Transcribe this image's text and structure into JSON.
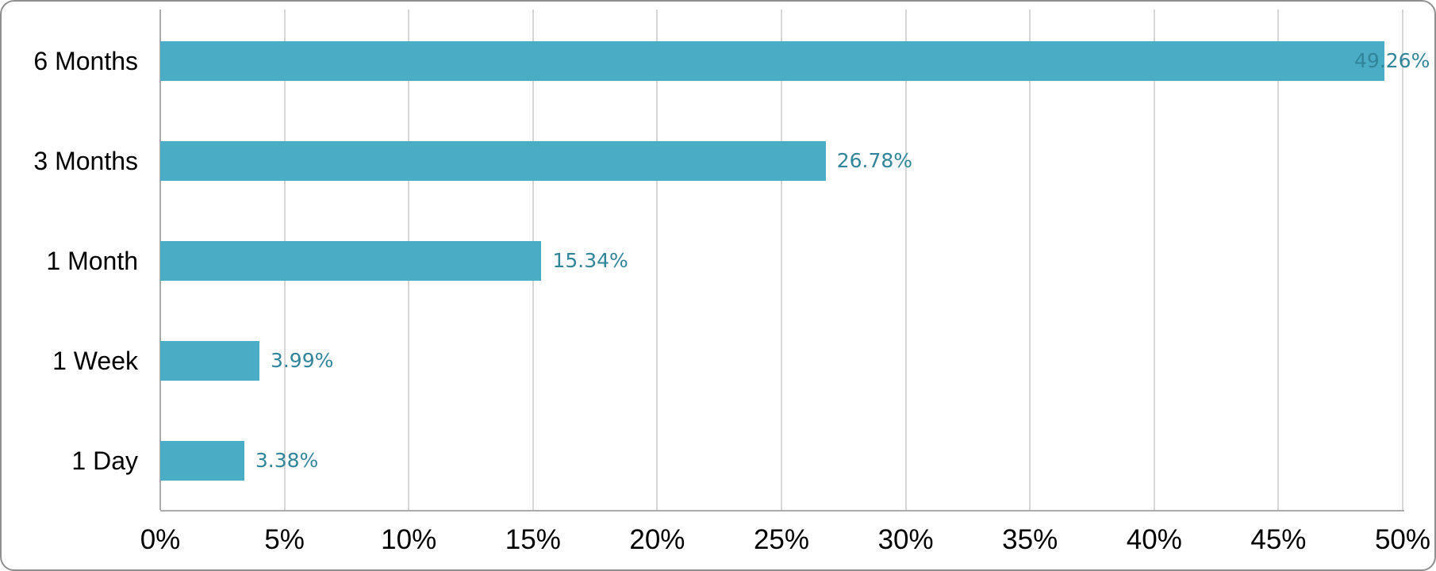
{
  "chart_data": {
    "type": "bar",
    "orientation": "horizontal",
    "title": "",
    "xlabel": "",
    "ylabel": "",
    "categories": [
      "6 Months",
      "3 Months",
      "1 Month",
      "1 Week",
      "1 Day"
    ],
    "values": [
      49.26,
      26.78,
      15.34,
      3.99,
      3.38
    ],
    "data_labels": [
      "49.26%",
      "26.78%",
      "15.34%",
      "3.99%",
      "3.38%"
    ],
    "x_ticks": [
      "0%",
      "5%",
      "10%",
      "15%",
      "20%",
      "25%",
      "30%",
      "35%",
      "40%",
      "45%",
      "50%"
    ],
    "xlim": [
      0,
      50
    ],
    "grid": true,
    "legend": false,
    "colors": {
      "bar": "#4BACC6",
      "data_label": "#31859B",
      "gridline": "#D6D6D6",
      "axis_line": "#ABABAB",
      "category_label": "#000000",
      "tick_label": "#000000",
      "card_border": "#8F8F8F",
      "background": "#FFFFFF"
    }
  }
}
